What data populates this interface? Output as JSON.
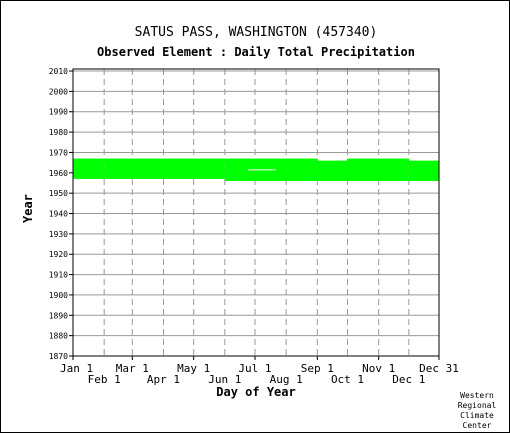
{
  "chart_data": {
    "type": "heatmap",
    "title": "SATUS PASS, WASHINGTON   (457340)",
    "subtitle": "Observed Element : Daily Total Precipitation",
    "xlabel": "Day of Year",
    "ylabel": "Year",
    "xlim": [
      1,
      365
    ],
    "ylim": [
      1870,
      2011
    ],
    "grid": true,
    "y_ticks": [
      1870,
      1880,
      1890,
      1900,
      1910,
      1920,
      1930,
      1940,
      1950,
      1960,
      1970,
      1980,
      1990,
      2000,
      2010
    ],
    "x_ticks_upper": [
      {
        "label": "Jan 1",
        "day": 1
      },
      {
        "label": "Mar 1",
        "day": 60
      },
      {
        "label": "May 1",
        "day": 121
      },
      {
        "label": "Jul 1",
        "day": 182
      },
      {
        "label": "Sep 1",
        "day": 244
      },
      {
        "label": "Nov 1",
        "day": 305
      },
      {
        "label": "Dec 31",
        "day": 365
      }
    ],
    "x_ticks_lower": [
      {
        "label": "Feb 1",
        "day": 32
      },
      {
        "label": "Apr 1",
        "day": 91
      },
      {
        "label": "Jun 1",
        "day": 152
      },
      {
        "label": "Aug 1",
        "day": 213
      },
      {
        "label": "Oct 1",
        "day": 274
      },
      {
        "label": "Dec 1",
        "day": 335
      }
    ],
    "data_color": "#00ff00",
    "series": [
      {
        "name": "",
        "segments": [
          {
            "start_day": 1,
            "end_day": 32,
            "first_year": 1957,
            "last_year": 1966
          },
          {
            "start_day": 32,
            "end_day": 152,
            "first_year": 1957,
            "last_year": 1966
          },
          {
            "start_day": 152,
            "end_day": 244,
            "first_year": 1956,
            "last_year": 1966
          },
          {
            "start_day": 244,
            "end_day": 274,
            "first_year": 1956,
            "last_year": 1965
          },
          {
            "start_day": 274,
            "end_day": 335,
            "first_year": 1956,
            "last_year": 1966
          },
          {
            "start_day": 335,
            "end_day": 365,
            "first_year": 1956,
            "last_year": 1965
          }
        ]
      },
      {
        "name": "",
        "gaps": [
          {
            "start_day": 175,
            "end_day": 203,
            "year": 1961
          }
        ]
      }
    ]
  },
  "credit": "Western Regional Climate Center"
}
